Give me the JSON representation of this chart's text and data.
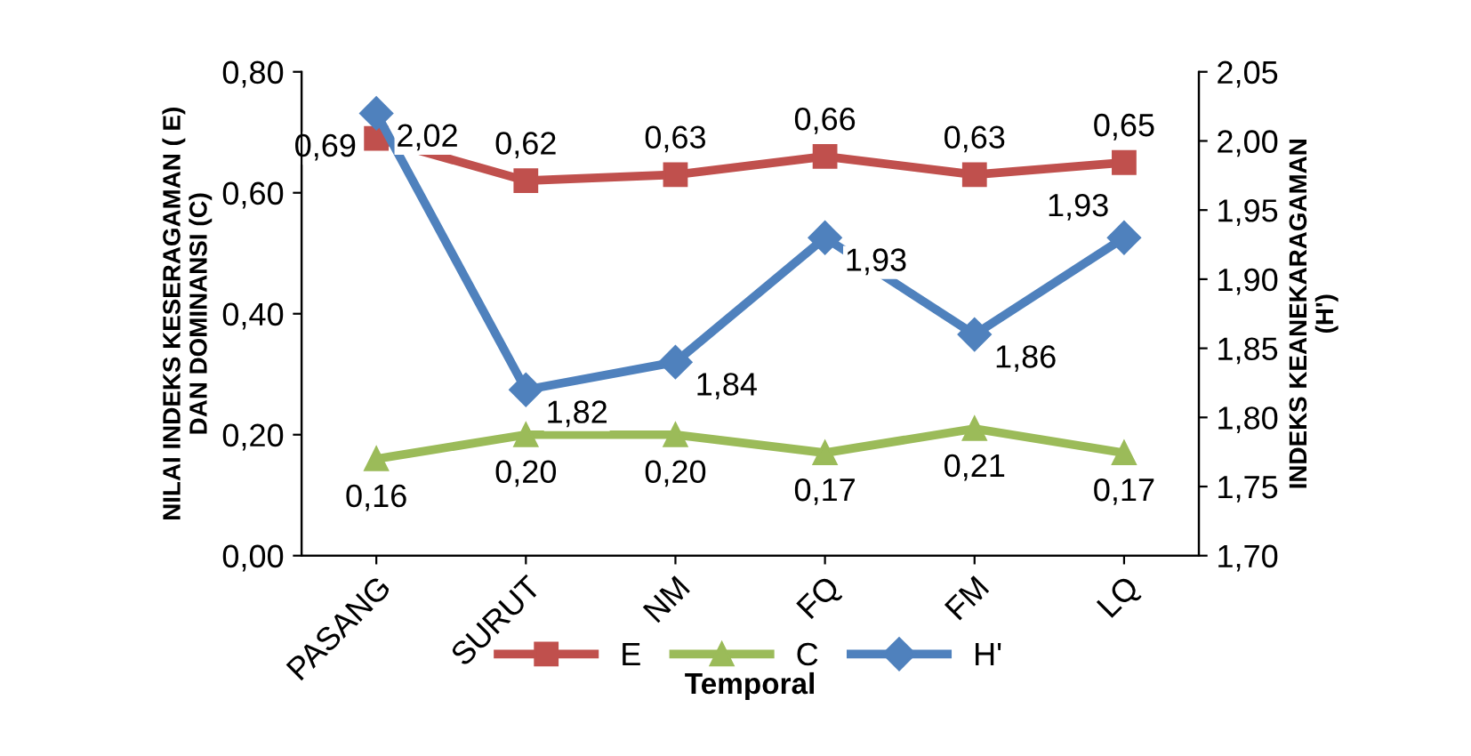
{
  "chart_data": {
    "type": "line",
    "xlabel": "Temporal",
    "ylabel": "NILAI INDEKS KESERAGAMAN ( E)\nDAN DOMINANSI (C)",
    "y2label": "INDEKS KEANEKARAGAMAN\n(H')",
    "categories": [
      "PASANG",
      "SURUT",
      "NM",
      "FQ",
      "FM",
      "LQ"
    ],
    "ylim": [
      0,
      0.8
    ],
    "yticks": [
      {
        "value": 0,
        "label": "0,00"
      },
      {
        "value": 0.2,
        "label": "0,20"
      },
      {
        "value": 0.4,
        "label": "0,40"
      },
      {
        "value": 0.6,
        "label": "0,60"
      },
      {
        "value": 0.8,
        "label": "0,80"
      }
    ],
    "y2lim": [
      1.7,
      2.05
    ],
    "y2ticks": [
      {
        "value": 1.7,
        "label": "1,70"
      },
      {
        "value": 1.75,
        "label": "1,75"
      },
      {
        "value": 1.8,
        "label": "1,80"
      },
      {
        "value": 1.85,
        "label": "1,85"
      },
      {
        "value": 1.9,
        "label": "1,90"
      },
      {
        "value": 1.95,
        "label": "1,95"
      },
      {
        "value": 2.0,
        "label": "2,00"
      },
      {
        "value": 2.05,
        "label": "2,05"
      }
    ],
    "grid": false,
    "legend": "bottom",
    "line_style": "solid",
    "series": [
      {
        "name": "E",
        "color": "#c0504d",
        "marker": "square",
        "values": [
          0.69,
          0.62,
          0.63,
          0.66,
          0.63,
          0.65
        ],
        "value_labels": [
          "0,69",
          "0,62",
          "0,63",
          "0,66",
          "0,63",
          "0,65"
        ]
      },
      {
        "name": "C",
        "color": "#9bbb59",
        "marker": "triangle",
        "values": [
          0.16,
          0.2,
          0.2,
          0.17,
          0.21,
          0.17
        ],
        "value_labels": [
          "0,16",
          "0,20",
          "0,20",
          "0,17",
          "0,21",
          "0,17"
        ]
      },
      {
        "name": "H'",
        "color": "#4f81bd",
        "marker": "diamond",
        "axis": "y2",
        "values": [
          2.02,
          1.82,
          1.84,
          1.93,
          1.86,
          1.93
        ],
        "value_labels": [
          "2,02",
          "1,82",
          "1,84",
          "1,93",
          "1,86",
          "1,93"
        ]
      }
    ]
  }
}
